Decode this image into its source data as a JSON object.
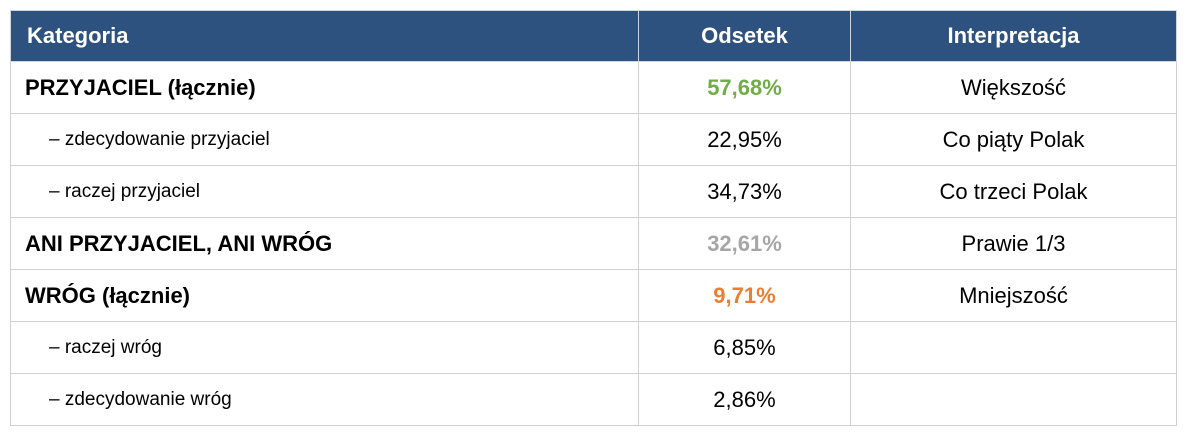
{
  "table": {
    "header": [
      "Kategoria",
      "Odsetek",
      "Interpretacja"
    ],
    "rows": [
      {
        "category": "PRZYJACIEL (łącznie)",
        "share": "57,68%",
        "interpretation": "Większość",
        "bold": true,
        "share_color": "#70ad47"
      },
      {
        "category": "– zdecydowanie przyjaciel",
        "share": "22,95%",
        "interpretation": "Co piąty Polak",
        "bold": false,
        "share_color": "#000000"
      },
      {
        "category": "– raczej przyjaciel",
        "share": "34,73%",
        "interpretation": "Co trzeci Polak",
        "bold": false,
        "share_color": "#000000"
      },
      {
        "category": "ANI PRZYJACIEL, ANI WRÓG",
        "share": "32,61%",
        "interpretation": "Prawie 1/3",
        "bold": true,
        "share_color": "#a6a6a6"
      },
      {
        "category": "WRÓG (łącznie)",
        "share": "9,71%",
        "interpretation": "Mniejszość",
        "bold": true,
        "share_color": "#ed7d31"
      },
      {
        "category": "– raczej wróg",
        "share": "6,85%",
        "interpretation": null,
        "bold": false,
        "share_color": "#000000"
      },
      {
        "category": "– zdecydowanie wróg",
        "share": "2,86%",
        "interpretation": null,
        "bold": false,
        "share_color": "#000000"
      }
    ]
  }
}
